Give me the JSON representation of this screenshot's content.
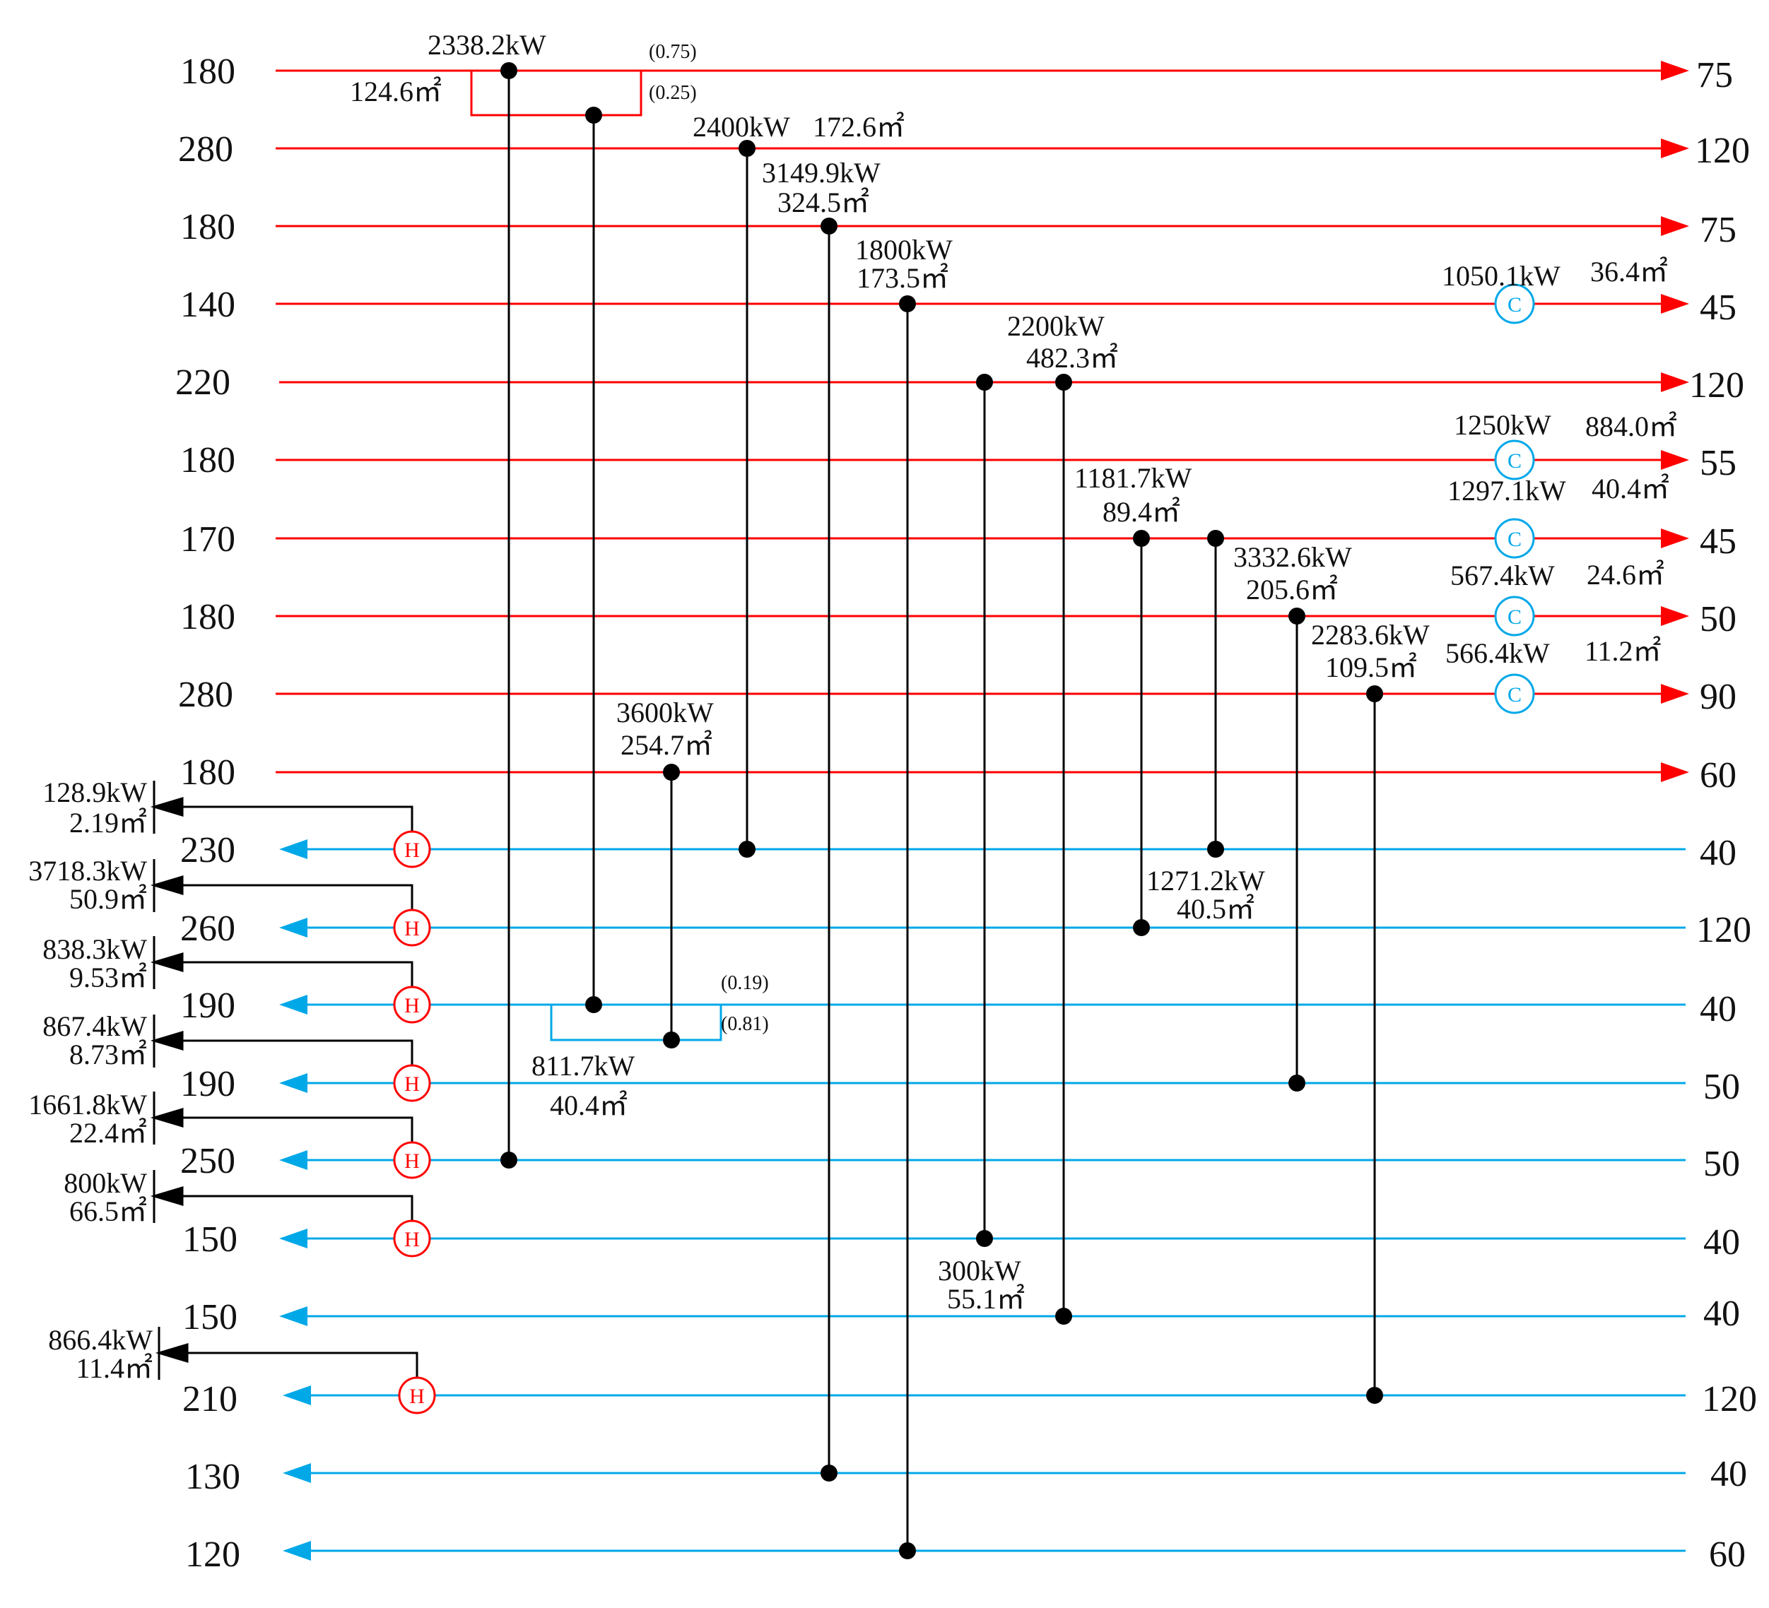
{
  "colors": {
    "hot": "#ff0000",
    "cold": "#00a8e8",
    "match": "#000000"
  },
  "hot_streams": [
    {
      "id": "H1",
      "supply": "180",
      "target": "75"
    },
    {
      "id": "H2",
      "supply": "280",
      "target": "120"
    },
    {
      "id": "H3",
      "supply": "180",
      "target": "75"
    },
    {
      "id": "H4",
      "supply": "140",
      "target": "45"
    },
    {
      "id": "H5",
      "supply": "220",
      "target": "120"
    },
    {
      "id": "H6",
      "supply": "180",
      "target": "55"
    },
    {
      "id": "H7",
      "supply": "170",
      "target": "45"
    },
    {
      "id": "H8",
      "supply": "180",
      "target": "50"
    },
    {
      "id": "H9",
      "supply": "280",
      "target": "90"
    },
    {
      "id": "H10",
      "supply": "180",
      "target": "60"
    }
  ],
  "cold_streams": [
    {
      "id": "C1",
      "supply": "40",
      "target": "230"
    },
    {
      "id": "C2",
      "supply": "120",
      "target": "260"
    },
    {
      "id": "C3",
      "supply": "40",
      "target": "190"
    },
    {
      "id": "C4",
      "supply": "50",
      "target": "190"
    },
    {
      "id": "C5",
      "supply": "50",
      "target": "250"
    },
    {
      "id": "C6",
      "supply": "40",
      "target": "150"
    },
    {
      "id": "C7",
      "supply": "40",
      "target": "150"
    },
    {
      "id": "C8",
      "supply": "120",
      "target": "210"
    },
    {
      "id": "C9",
      "supply": "40",
      "target": "130"
    },
    {
      "id": "C10",
      "supply": "60",
      "target": "120"
    }
  ],
  "matches": [
    {
      "name": "match-h1-c5",
      "hot": 1,
      "cold": 5,
      "duty": "2338.2kW"
    },
    {
      "name": "match-h1-c3-split",
      "hot": 1,
      "cold": 3
    },
    {
      "name": "match-h2-c1",
      "hot": 2,
      "cold": 1,
      "duty": "2400kW",
      "area": "172.6㎡"
    },
    {
      "name": "match-h3-c9",
      "hot": 3,
      "cold": 9,
      "duty": "3149.9kW",
      "area": "324.5㎡"
    },
    {
      "name": "match-h4-c10",
      "hot": 4,
      "cold": 10,
      "duty": "1800kW",
      "area": "173.5㎡"
    },
    {
      "name": "match-h5-c6",
      "hot": 5,
      "cold": 6,
      "duty": "300kW",
      "area": "55.1㎡"
    },
    {
      "name": "match-h5-c7",
      "hot": 5,
      "cold": 7,
      "duty": "2200kW",
      "area": "482.3㎡"
    },
    {
      "name": "match-h7-c2",
      "hot": 7,
      "cold": 2,
      "duty": "1181.7kW",
      "area": "89.4㎡"
    },
    {
      "name": "match-h7-c1",
      "hot": 7,
      "cold": 1,
      "duty": "1271.2kW",
      "area": "40.5㎡"
    },
    {
      "name": "match-h8-c4",
      "hot": 8,
      "cold": 4,
      "duty": "3332.6kW",
      "area": "205.6㎡"
    },
    {
      "name": "match-h9-c8",
      "hot": 9,
      "cold": 8,
      "duty": "2283.6kW",
      "area": "109.5㎡"
    },
    {
      "name": "match-h10-c3",
      "hot": 10,
      "cold": 3,
      "duty": "3600kW",
      "area": "254.7㎡"
    }
  ],
  "hot_split": {
    "fraction_a": "(0.75)",
    "fraction_b": "(0.25)",
    "area": "124.6㎡"
  },
  "cold_split": {
    "fraction_a": "(0.19)",
    "fraction_b": "(0.81)",
    "duty": "811.7kW",
    "area": "40.4㎡"
  },
  "coolers": [
    {
      "stream": 4,
      "symbol": "C",
      "duty": "1050.1kW",
      "area": "36.4㎡"
    },
    {
      "stream": 6,
      "symbol": "C",
      "duty": "1250kW",
      "area": "884.0㎡"
    },
    {
      "stream": 7,
      "symbol": "C",
      "duty": "1297.1kW",
      "area": "40.4㎡"
    },
    {
      "stream": 8,
      "symbol": "C",
      "duty": "567.4kW",
      "area": "24.6㎡"
    },
    {
      "stream": 9,
      "symbol": "C",
      "duty": "566.4kW",
      "area": "11.2㎡"
    }
  ],
  "heaters": [
    {
      "stream": 1,
      "symbol": "H",
      "duty": "128.9kW",
      "area": "2.19㎡"
    },
    {
      "stream": 2,
      "symbol": "H",
      "duty": "3718.3kW",
      "area": "50.9㎡"
    },
    {
      "stream": 3,
      "symbol": "H",
      "duty": "838.3kW",
      "area": "9.53㎡"
    },
    {
      "stream": 4,
      "symbol": "H",
      "duty": "867.4kW",
      "area": "8.73㎡"
    },
    {
      "stream": 5,
      "symbol": "H",
      "duty": "1661.8kW",
      "area": "22.4㎡"
    },
    {
      "stream": 6,
      "symbol": "H",
      "duty": "800kW",
      "area": "66.5㎡"
    },
    {
      "stream": 8,
      "symbol": "H",
      "duty": "866.4kW",
      "area": "11.4㎡"
    }
  ]
}
